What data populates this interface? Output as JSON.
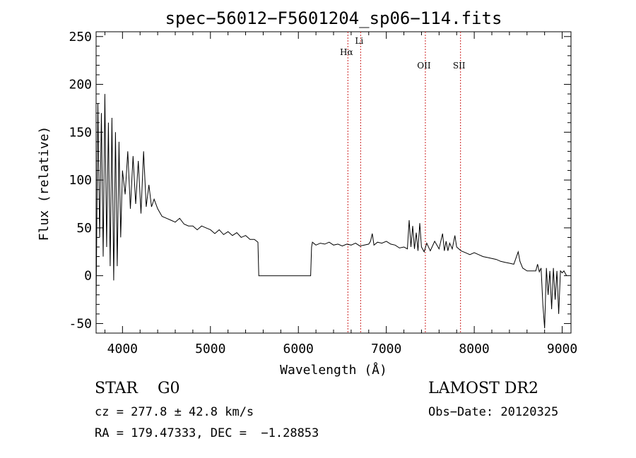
{
  "chart_data": {
    "type": "line",
    "title": "spec−56012−F5601204_sp06−114.fits",
    "xlabel": "Wavelength (Å)",
    "ylabel": "Flux (relative)",
    "xlim": [
      3700,
      9100
    ],
    "ylim": [
      -60,
      255
    ],
    "xticks": [
      4000,
      5000,
      6000,
      7000,
      8000,
      9000
    ],
    "yticks": [
      250,
      200,
      150,
      100,
      50,
      0,
      -50
    ],
    "grid": false,
    "series": [
      {
        "x": [
          3700,
          3720,
          3740,
          3760,
          3780,
          3800,
          3820,
          3840,
          3860,
          3880,
          3900,
          3920,
          3940,
          3960,
          3980,
          4000,
          4030,
          4060,
          4090,
          4120,
          4150,
          4180,
          4210,
          4240,
          4270,
          4300,
          4330,
          4360,
          4400,
          4450,
          4500,
          4550,
          4600,
          4650,
          4700,
          4750,
          4800,
          4850,
          4900,
          4950,
          5000,
          5050,
          5100,
          5150,
          5200,
          5250,
          5300,
          5350,
          5400,
          5450,
          5500,
          5540,
          5550,
          5560,
          6100,
          6140,
          6150,
          6160,
          6200,
          6250,
          6300,
          6350,
          6400,
          6450,
          6500,
          6550,
          6600,
          6650,
          6700,
          6750,
          6800,
          6820,
          6840,
          6860,
          6900,
          6950,
          7000,
          7050,
          7100,
          7150,
          7200,
          7240,
          7260,
          7280,
          7300,
          7320,
          7340,
          7360,
          7380,
          7400,
          7430,
          7460,
          7500,
          7550,
          7600,
          7640,
          7660,
          7680,
          7700,
          7720,
          7750,
          7780,
          7800,
          7850,
          7900,
          7950,
          8000,
          8050,
          8100,
          8150,
          8200,
          8250,
          8300,
          8350,
          8400,
          8450,
          8500,
          8520,
          8550,
          8600,
          8650,
          8700,
          8720,
          8740,
          8760,
          8780,
          8800,
          8820,
          8840,
          8860,
          8880,
          8900,
          8920,
          8940,
          8960,
          8980,
          9000,
          9020,
          9050
        ],
        "values": [
          -30,
          180,
          40,
          170,
          20,
          190,
          30,
          160,
          10,
          165,
          -5,
          150,
          10,
          140,
          40,
          110,
          85,
          130,
          70,
          125,
          75,
          120,
          65,
          130,
          72,
          95,
          72,
          80,
          70,
          62,
          60,
          58,
          56,
          60,
          54,
          52,
          52,
          48,
          52,
          50,
          48,
          44,
          48,
          43,
          46,
          42,
          45,
          40,
          42,
          38,
          38,
          35,
          0,
          0,
          0,
          0,
          30,
          35,
          32,
          34,
          33,
          35,
          32,
          33,
          31,
          33,
          32,
          34,
          31,
          32,
          33,
          36,
          44,
          32,
          35,
          34,
          36,
          33,
          32,
          29,
          30,
          28,
          58,
          30,
          52,
          28,
          45,
          26,
          55,
          30,
          25,
          34,
          26,
          36,
          28,
          44,
          26,
          36,
          26,
          34,
          28,
          42,
          30,
          26,
          24,
          22,
          24,
          22,
          20,
          19,
          18,
          17,
          15,
          14,
          13,
          12,
          25,
          15,
          8,
          5,
          5,
          5,
          12,
          4,
          8,
          -30,
          -55,
          8,
          -20,
          5,
          -35,
          8,
          -25,
          5,
          -40,
          5,
          3,
          5,
          0
        ]
      }
    ],
    "annotations": [
      {
        "label": "Hα",
        "x": 6563
      },
      {
        "label": "Li",
        "x": 6708
      },
      {
        "label": "OII",
        "x": 7444
      },
      {
        "label": "SII",
        "x": 7844
      }
    ],
    "line_color": "#000000",
    "annotation_color": "#cc2222"
  },
  "info": {
    "object": "STAR    G0",
    "cz": "cz = 277.8 ± 42.8 km/s",
    "radec": "RA = 179.47333, DEC =  −1.28853",
    "survey": "LAMOST DR2",
    "obsdate": "Obs−Date: 20120325"
  }
}
